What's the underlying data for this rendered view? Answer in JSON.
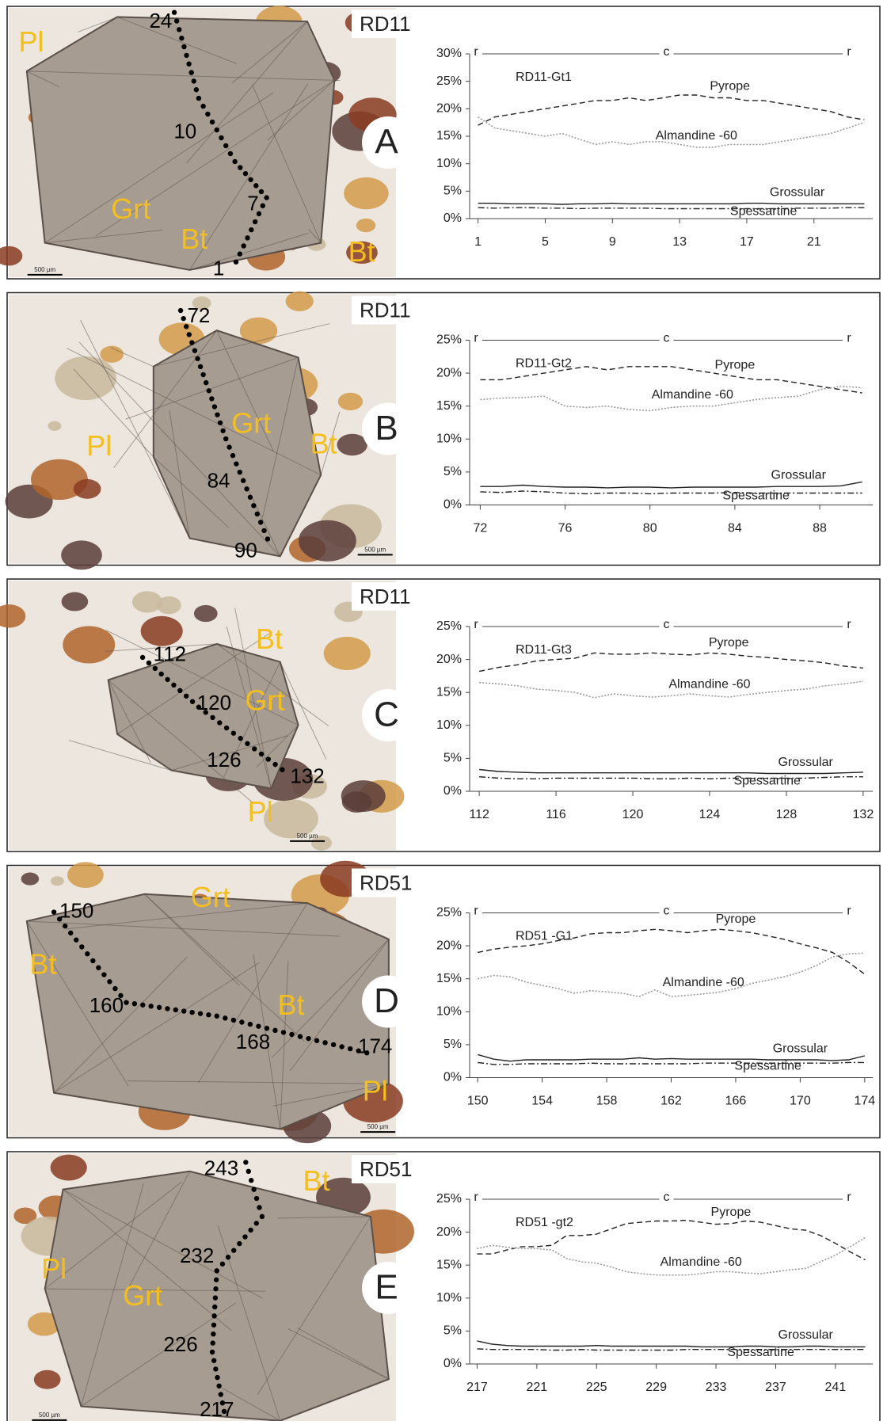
{
  "chart_data": [
    {
      "type": "line",
      "panel": "A",
      "sample": "RD11",
      "title": "RD11-Gt1",
      "profile": [
        "r",
        "c",
        "r"
      ],
      "image_labels": [
        "Pl",
        "Grt",
        "Bt",
        "Bt",
        "24",
        "10",
        "7",
        "1"
      ],
      "scale_bar": "500 µm",
      "x": [
        1,
        2,
        3,
        4,
        5,
        6,
        7,
        8,
        9,
        10,
        11,
        12,
        13,
        14,
        15,
        16,
        17,
        18,
        19,
        20,
        21,
        22,
        23,
        24
      ],
      "xlim": [
        0.5,
        24.5
      ],
      "xticks": [
        1,
        5,
        9,
        13,
        17,
        21
      ],
      "ylim": [
        0,
        30
      ],
      "yticks": [
        {
          "value": 0,
          "label": "0%"
        },
        {
          "value": 5,
          "label": "5%"
        },
        {
          "value": 10,
          "label": "10%"
        },
        {
          "value": 15,
          "label": "15%"
        },
        {
          "value": 20,
          "label": "20%"
        },
        {
          "value": 25,
          "label": "25%"
        },
        {
          "value": 30,
          "label": "30%"
        }
      ],
      "series": [
        {
          "name": "Pyrope",
          "color": "#222222",
          "style": "dashed",
          "values": [
            17,
            18.5,
            19,
            19.5,
            20,
            20.5,
            21,
            21.5,
            21.5,
            22,
            21.5,
            22,
            22.5,
            22.5,
            22,
            22,
            21.5,
            21.5,
            21,
            20.5,
            20,
            19.5,
            18.5,
            18
          ]
        },
        {
          "name": "Almandine -60",
          "color": "#999999",
          "style": "dotted",
          "values": [
            18.5,
            16.5,
            16,
            15.5,
            15,
            15.5,
            14.5,
            13.5,
            14,
            13.5,
            14,
            14,
            13.5,
            13,
            13,
            13.5,
            13.5,
            13.5,
            14,
            14.5,
            15,
            15.5,
            16.5,
            17.5
          ]
        },
        {
          "name": "Grossular",
          "color": "#222222",
          "style": "solid",
          "values": [
            2.8,
            2.8,
            2.7,
            2.7,
            2.7,
            2.6,
            2.7,
            2.7,
            2.8,
            2.7,
            2.7,
            2.7,
            2.7,
            2.7,
            2.7,
            2.7,
            2.8,
            2.8,
            2.7,
            2.7,
            2.7,
            2.7,
            2.7,
            2.7
          ]
        },
        {
          "name": "Spessartine",
          "color": "#222222",
          "style": "dashdot",
          "values": [
            2,
            1.9,
            2,
            2,
            1.9,
            1.9,
            1.8,
            1.9,
            1.9,
            1.9,
            1.9,
            1.8,
            1.8,
            1.8,
            1.8,
            1.8,
            1.8,
            1.8,
            1.8,
            1.9,
            1.9,
            1.9,
            2,
            2
          ]
        }
      ]
    },
    {
      "type": "line",
      "panel": "B",
      "sample": "RD11",
      "title": "RD11-Gt2",
      "profile": [
        "r",
        "c",
        "r"
      ],
      "image_labels": [
        "Pl",
        "Grt",
        "Bt",
        "72",
        "84",
        "90"
      ],
      "scale_bar": "500 µm",
      "x": [
        72,
        73,
        74,
        75,
        76,
        77,
        78,
        79,
        80,
        81,
        82,
        83,
        84,
        85,
        86,
        87,
        88,
        89,
        90
      ],
      "xlim": [
        71.5,
        90.5
      ],
      "xticks": [
        72,
        76,
        80,
        84,
        88
      ],
      "ylim": [
        0,
        25
      ],
      "yticks": [
        {
          "value": 0,
          "label": "0%"
        },
        {
          "value": 5,
          "label": "5%"
        },
        {
          "value": 10,
          "label": "10%"
        },
        {
          "value": 15,
          "label": "15%"
        },
        {
          "value": 20,
          "label": "20%"
        },
        {
          "value": 25,
          "label": "25%"
        }
      ],
      "series": [
        {
          "name": "Pyrope",
          "color": "#222222",
          "style": "dashed",
          "values": [
            19,
            19,
            19.5,
            20,
            20.5,
            21,
            20.5,
            21,
            21,
            21,
            20.5,
            20,
            19.5,
            19,
            19,
            18.5,
            18,
            17.5,
            17
          ]
        },
        {
          "name": "Almandine -60",
          "color": "#999999",
          "style": "dotted",
          "values": [
            16,
            16.2,
            16.3,
            16.5,
            15,
            14.8,
            15,
            14.5,
            14.3,
            14.8,
            15,
            15,
            15.5,
            16,
            16.3,
            16.5,
            17.5,
            18,
            17.8
          ]
        },
        {
          "name": "Grossular",
          "color": "#222222",
          "style": "solid",
          "values": [
            2.8,
            2.8,
            3,
            2.8,
            2.7,
            2.7,
            2.6,
            2.7,
            2.7,
            2.6,
            2.7,
            2.7,
            2.7,
            2.7,
            2.8,
            2.8,
            2.8,
            2.9,
            3.5
          ]
        },
        {
          "name": "Spessartine",
          "color": "#222222",
          "style": "dashdot",
          "values": [
            2,
            1.9,
            2.1,
            2,
            1.8,
            1.7,
            1.8,
            1.8,
            1.7,
            1.8,
            1.8,
            1.8,
            1.9,
            1.8,
            1.8,
            1.8,
            1.8,
            1.8,
            1.8
          ]
        }
      ]
    },
    {
      "type": "line",
      "panel": "C",
      "sample": "RD11",
      "title": "RD11-Gt3",
      "profile": [
        "r",
        "c",
        "r"
      ],
      "image_labels": [
        "Bt",
        "Grt",
        "Pl",
        "112",
        "120",
        "126",
        "132"
      ],
      "scale_bar": "500 µm",
      "x": [
        112,
        113,
        114,
        115,
        116,
        117,
        118,
        119,
        120,
        121,
        122,
        123,
        124,
        125,
        126,
        127,
        128,
        129,
        130,
        131,
        132
      ],
      "xlim": [
        111.5,
        132.5
      ],
      "xticks": [
        112,
        116,
        120,
        124,
        128,
        132
      ],
      "ylim": [
        0,
        25
      ],
      "yticks": [
        {
          "value": 0,
          "label": "0%"
        },
        {
          "value": 5,
          "label": "5%"
        },
        {
          "value": 10,
          "label": "10%"
        },
        {
          "value": 15,
          "label": "15%"
        },
        {
          "value": 20,
          "label": "20%"
        },
        {
          "value": 25,
          "label": "25%"
        }
      ],
      "series": [
        {
          "name": "Pyrope",
          "color": "#222222",
          "style": "dashed",
          "values": [
            18.2,
            18.8,
            19.2,
            19.8,
            20,
            20.2,
            21,
            20.8,
            20.8,
            21,
            20.8,
            20.7,
            21,
            20.8,
            20.5,
            20.3,
            20,
            19.8,
            19.5,
            19,
            18.7
          ]
        },
        {
          "name": "Almandine -60",
          "color": "#999999",
          "style": "dotted",
          "values": [
            16.5,
            16.3,
            16,
            15.5,
            15.3,
            15,
            14.2,
            14.8,
            14.5,
            14.3,
            14.5,
            14.8,
            14.5,
            14.3,
            14.7,
            15,
            15.3,
            15.5,
            16,
            16.3,
            16.7
          ]
        },
        {
          "name": "Grossular",
          "color": "#222222",
          "style": "solid",
          "values": [
            3.3,
            3,
            2.9,
            2.8,
            2.8,
            2.8,
            2.8,
            2.8,
            2.8,
            2.8,
            2.8,
            2.8,
            2.8,
            2.8,
            2.8,
            2.7,
            2.7,
            2.7,
            2.7,
            2.8,
            2.9
          ]
        },
        {
          "name": "Spessartine",
          "color": "#222222",
          "style": "dashdot",
          "values": [
            2.2,
            2,
            1.9,
            1.9,
            2,
            2,
            2,
            2,
            2,
            1.9,
            1.9,
            2,
            1.9,
            2,
            2,
            2,
            2,
            2,
            2.1,
            2.2,
            2.2
          ]
        }
      ]
    },
    {
      "type": "line",
      "panel": "D",
      "sample": "RD51",
      "title": "RD51  -G1",
      "profile": [
        "r",
        "c",
        "r"
      ],
      "image_labels": [
        "Grt",
        "Bt",
        "Bt",
        "Pl",
        "150",
        "160",
        "168",
        "174"
      ],
      "scale_bar": "500 µm",
      "x": [
        150,
        151,
        152,
        153,
        154,
        155,
        156,
        157,
        158,
        159,
        160,
        161,
        162,
        163,
        164,
        165,
        166,
        167,
        168,
        169,
        170,
        171,
        172,
        173,
        174
      ],
      "xlim": [
        149.5,
        174.5
      ],
      "xticks": [
        150,
        154,
        158,
        162,
        166,
        170,
        174
      ],
      "ylim": [
        0,
        25
      ],
      "yticks": [
        {
          "value": 0,
          "label": "0%"
        },
        {
          "value": 5,
          "label": "5%"
        },
        {
          "value": 10,
          "label": "10%"
        },
        {
          "value": 15,
          "label": "15%"
        },
        {
          "value": 20,
          "label": "20%"
        },
        {
          "value": 25,
          "label": "25%"
        }
      ],
      "series": [
        {
          "name": "Pyrope",
          "color": "#222222",
          "style": "dashed",
          "values": [
            19,
            19.5,
            19.8,
            20,
            20.3,
            20.8,
            21.2,
            21.8,
            22,
            22,
            22.3,
            22.5,
            22.3,
            22,
            22.3,
            22.5,
            22.3,
            22,
            21.5,
            21,
            20.3,
            19.7,
            19,
            17.5,
            15.7
          ]
        },
        {
          "name": "Almandine -60",
          "color": "#999999",
          "style": "dotted",
          "values": [
            15,
            15.5,
            15.3,
            14.5,
            14,
            13.5,
            12.8,
            13.2,
            13,
            12.8,
            12.3,
            13.3,
            12.3,
            12.5,
            12.7,
            13,
            13.5,
            14.3,
            14.8,
            15.3,
            16,
            17,
            18.3,
            18.8,
            18.9
          ]
        },
        {
          "name": "Grossular",
          "color": "#222222",
          "style": "solid",
          "values": [
            3.5,
            2.8,
            2.5,
            2.7,
            2.7,
            2.7,
            2.7,
            2.8,
            2.8,
            2.8,
            3,
            2.8,
            2.9,
            2.8,
            2.8,
            2.8,
            2.8,
            2.8,
            2.7,
            2.7,
            2.7,
            2.7,
            2.6,
            2.7,
            3.3
          ]
        },
        {
          "name": "Spessartine",
          "color": "#222222",
          "style": "dashdot",
          "values": [
            2.3,
            2,
            2,
            2.1,
            2.1,
            2.1,
            2.1,
            2.2,
            2.1,
            2.1,
            2.1,
            2.1,
            2.1,
            2.1,
            2.2,
            2.2,
            2.2,
            2.2,
            2.2,
            2.2,
            2.2,
            2.2,
            2.2,
            2.3,
            2.3
          ]
        }
      ]
    },
    {
      "type": "line",
      "panel": "E",
      "sample": "RD51",
      "title": "RD51  -gt2",
      "profile": [
        "r",
        "c",
        "r"
      ],
      "image_labels": [
        "Bt",
        "Pl",
        "Grt",
        "243",
        "232",
        "226",
        "217"
      ],
      "scale_bar": "500 µm",
      "x": [
        217,
        218,
        219,
        220,
        221,
        222,
        223,
        224,
        225,
        226,
        227,
        228,
        229,
        230,
        231,
        232,
        233,
        234,
        235,
        236,
        237,
        238,
        239,
        240,
        241,
        242,
        243
      ],
      "xlim": [
        216.5,
        243.5
      ],
      "xticks": [
        217,
        221,
        225,
        229,
        233,
        237,
        241
      ],
      "ylim": [
        0,
        25
      ],
      "yticks": [
        {
          "value": 0,
          "label": "0%"
        },
        {
          "value": 5,
          "label": "5%"
        },
        {
          "value": 10,
          "label": "10%"
        },
        {
          "value": 15,
          "label": "15%"
        },
        {
          "value": 20,
          "label": "20%"
        },
        {
          "value": 25,
          "label": "25%"
        }
      ],
      "series": [
        {
          "name": "Pyrope",
          "color": "#222222",
          "style": "dashed",
          "values": [
            16.7,
            16.7,
            17.3,
            17.8,
            17.8,
            18,
            19.5,
            19.5,
            19.7,
            20.5,
            21.3,
            21.5,
            21.7,
            21.7,
            21.8,
            21.5,
            21.2,
            21.3,
            21.7,
            21.5,
            21,
            20.5,
            20.3,
            19.5,
            18.3,
            17,
            15.8
          ]
        },
        {
          "name": "Almandine -60",
          "color": "#999999",
          "style": "dotted",
          "values": [
            17.5,
            18,
            17.7,
            17.5,
            17.5,
            17.3,
            16,
            15.5,
            15.3,
            14.7,
            14,
            13.7,
            13.5,
            13.5,
            13.5,
            13.7,
            14,
            14,
            13.8,
            13.7,
            14,
            14.3,
            14.5,
            15.5,
            16.5,
            17.8,
            19.2
          ]
        },
        {
          "name": "Grossular",
          "color": "#222222",
          "style": "solid",
          "values": [
            3.5,
            3,
            2.8,
            2.7,
            2.7,
            2.7,
            2.7,
            2.7,
            2.8,
            2.7,
            2.7,
            2.7,
            2.7,
            2.7,
            2.7,
            2.6,
            2.6,
            2.6,
            2.7,
            2.7,
            2.6,
            2.6,
            2.7,
            2.7,
            2.6,
            2.6,
            2.6
          ]
        },
        {
          "name": "Spessartine",
          "color": "#222222",
          "style": "dashdot",
          "values": [
            2.3,
            2.2,
            2.2,
            2.2,
            2.2,
            2.1,
            2.1,
            2.2,
            2.1,
            2.1,
            2.1,
            2.1,
            2.1,
            2.1,
            2.2,
            2.2,
            2.2,
            2.2,
            2.2,
            2.2,
            2.2,
            2.2,
            2.2,
            2.2,
            2.2,
            2.2,
            2.2
          ]
        }
      ]
    }
  ]
}
